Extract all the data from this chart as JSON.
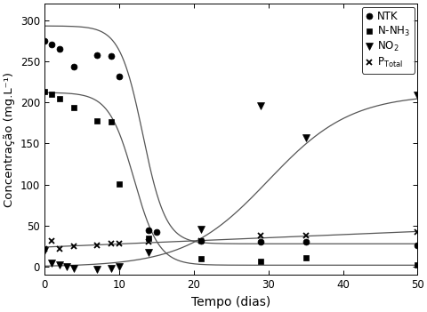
{
  "xlabel": "Tempo (dias)",
  "ylabel": "Concentração (mg.L⁻¹)",
  "xlim": [
    0,
    50
  ],
  "ylim": [
    -10,
    320
  ],
  "yticks": [
    0,
    50,
    100,
    150,
    200,
    250,
    300
  ],
  "xticks": [
    0,
    10,
    20,
    30,
    40,
    50
  ],
  "background": "#ffffff",
  "NTK_x": [
    0,
    1,
    2,
    4,
    7,
    9,
    10,
    14,
    15,
    21,
    29,
    35,
    50
  ],
  "NTK_y": [
    275,
    270,
    265,
    243,
    257,
    256,
    231,
    44,
    42,
    32,
    30,
    30,
    26
  ],
  "NNH3_x": [
    0,
    1,
    2,
    4,
    7,
    9,
    10,
    14,
    21,
    29,
    35,
    50
  ],
  "NNH3_y": [
    213,
    210,
    205,
    194,
    178,
    176,
    101,
    35,
    10,
    7,
    11,
    2
  ],
  "NO2_x": [
    0,
    1,
    2,
    3,
    4,
    7,
    9,
    10,
    14,
    21,
    29,
    35,
    50
  ],
  "NO2_y": [
    20,
    5,
    2,
    0,
    -2,
    -3,
    -2,
    0,
    18,
    46,
    196,
    157,
    209
  ],
  "PTotal_x": [
    0,
    1,
    2,
    4,
    7,
    9,
    10,
    14,
    21,
    29,
    35,
    50
  ],
  "PTotal_y": [
    22,
    32,
    22,
    25,
    26,
    28,
    28,
    30,
    32,
    38,
    38,
    42
  ],
  "NTK_curve_params": {
    "L": 265,
    "k": 0.65,
    "x0": 13.2,
    "b": 28
  },
  "NNH3_curve_params": {
    "L": 210,
    "k": 0.6,
    "x0": 12.0,
    "b": 2
  },
  "NO2_curve_params": {
    "L": 210,
    "k": 0.18,
    "x0": 30,
    "b": 0
  },
  "PTotal_line": {
    "slope": 0.38,
    "intercept": 24
  },
  "line_color": "#555555",
  "marker_color": "#000000",
  "figsize": [
    4.81,
    3.51
  ],
  "dpi": 100
}
